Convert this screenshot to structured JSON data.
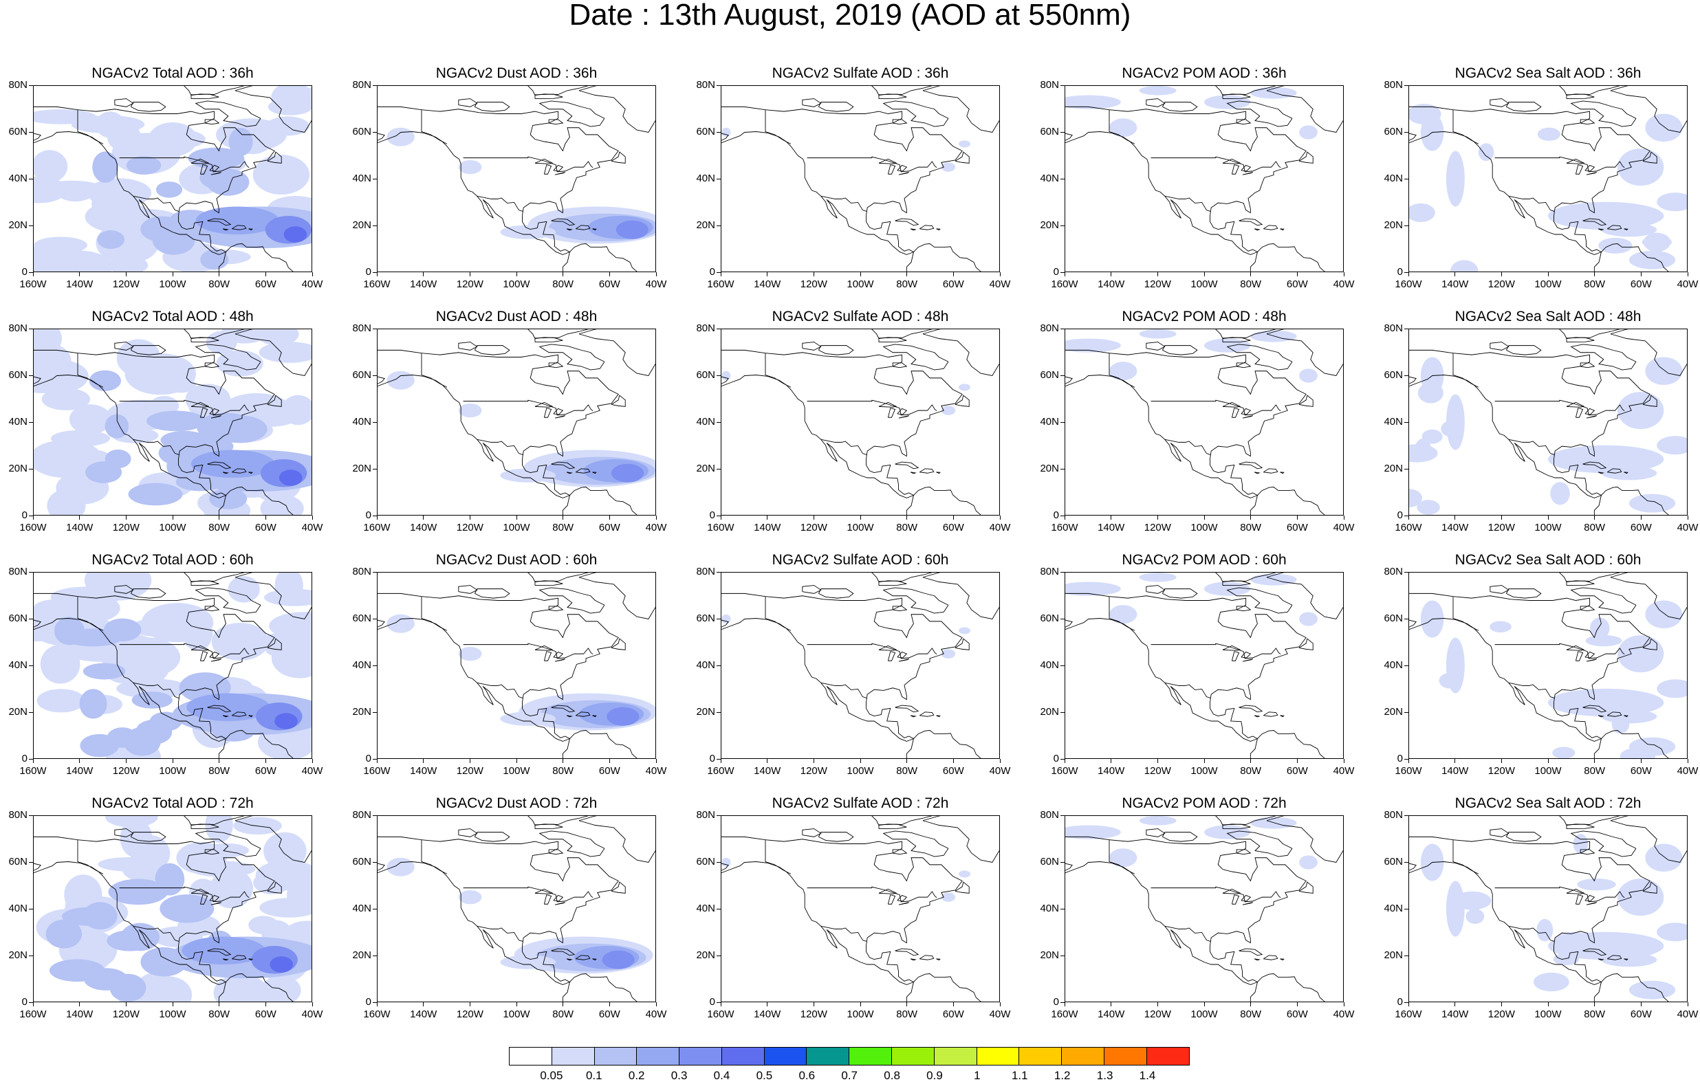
{
  "title": "Date : 13th August, 2019 (AOD at 550nm)",
  "panels": [
    [
      "NGACv2 Total AOD : 36h",
      "NGACv2 Dust AOD : 36h",
      "NGACv2 Sulfate AOD : 36h",
      "NGACv2 POM AOD : 36h",
      "NGACv2 Sea Salt AOD : 36h"
    ],
    [
      "NGACv2 Total AOD : 48h",
      "NGACv2 Dust AOD : 48h",
      "NGACv2 Sulfate AOD : 48h",
      "NGACv2 POM AOD : 48h",
      "NGACv2 Sea Salt AOD : 48h"
    ],
    [
      "NGACv2 Total AOD : 60h",
      "NGACv2 Dust AOD : 60h",
      "NGACv2 Sulfate AOD : 60h",
      "NGACv2 POM AOD : 60h",
      "NGACv2 Sea Salt AOD : 60h"
    ],
    [
      "NGACv2 Total AOD : 72h",
      "NGACv2 Dust AOD : 72h",
      "NGACv2 Sulfate AOD : 72h",
      "NGACv2 POM AOD : 72h",
      "NGACv2 Sea Salt  AOD : 72h"
    ]
  ],
  "y_ticks": [
    "0",
    "20N",
    "40N",
    "60N",
    "80N"
  ],
  "x_ticks": [
    "160W",
    "140W",
    "120W",
    "100W",
    "80W",
    "60W",
    "40W"
  ],
  "colorbar": {
    "colors": [
      "#ffffff",
      "#d4dcfa",
      "#b4c2f4",
      "#95a8f2",
      "#7d8ff0",
      "#5f6eee",
      "#1a53f0",
      "#05968f",
      "#52f00a",
      "#9bf00a",
      "#c6f040",
      "#ffff00",
      "#ffcc00",
      "#ffaa00",
      "#ff7700",
      "#ff2a14"
    ],
    "labels": [
      "0.05",
      "0.1",
      "0.2",
      "0.3",
      "0.4",
      "0.5",
      "0.6",
      "0.7",
      "0.8",
      "0.9",
      "1",
      "1.1",
      "1.2",
      "1.3",
      "1.4"
    ]
  }
}
